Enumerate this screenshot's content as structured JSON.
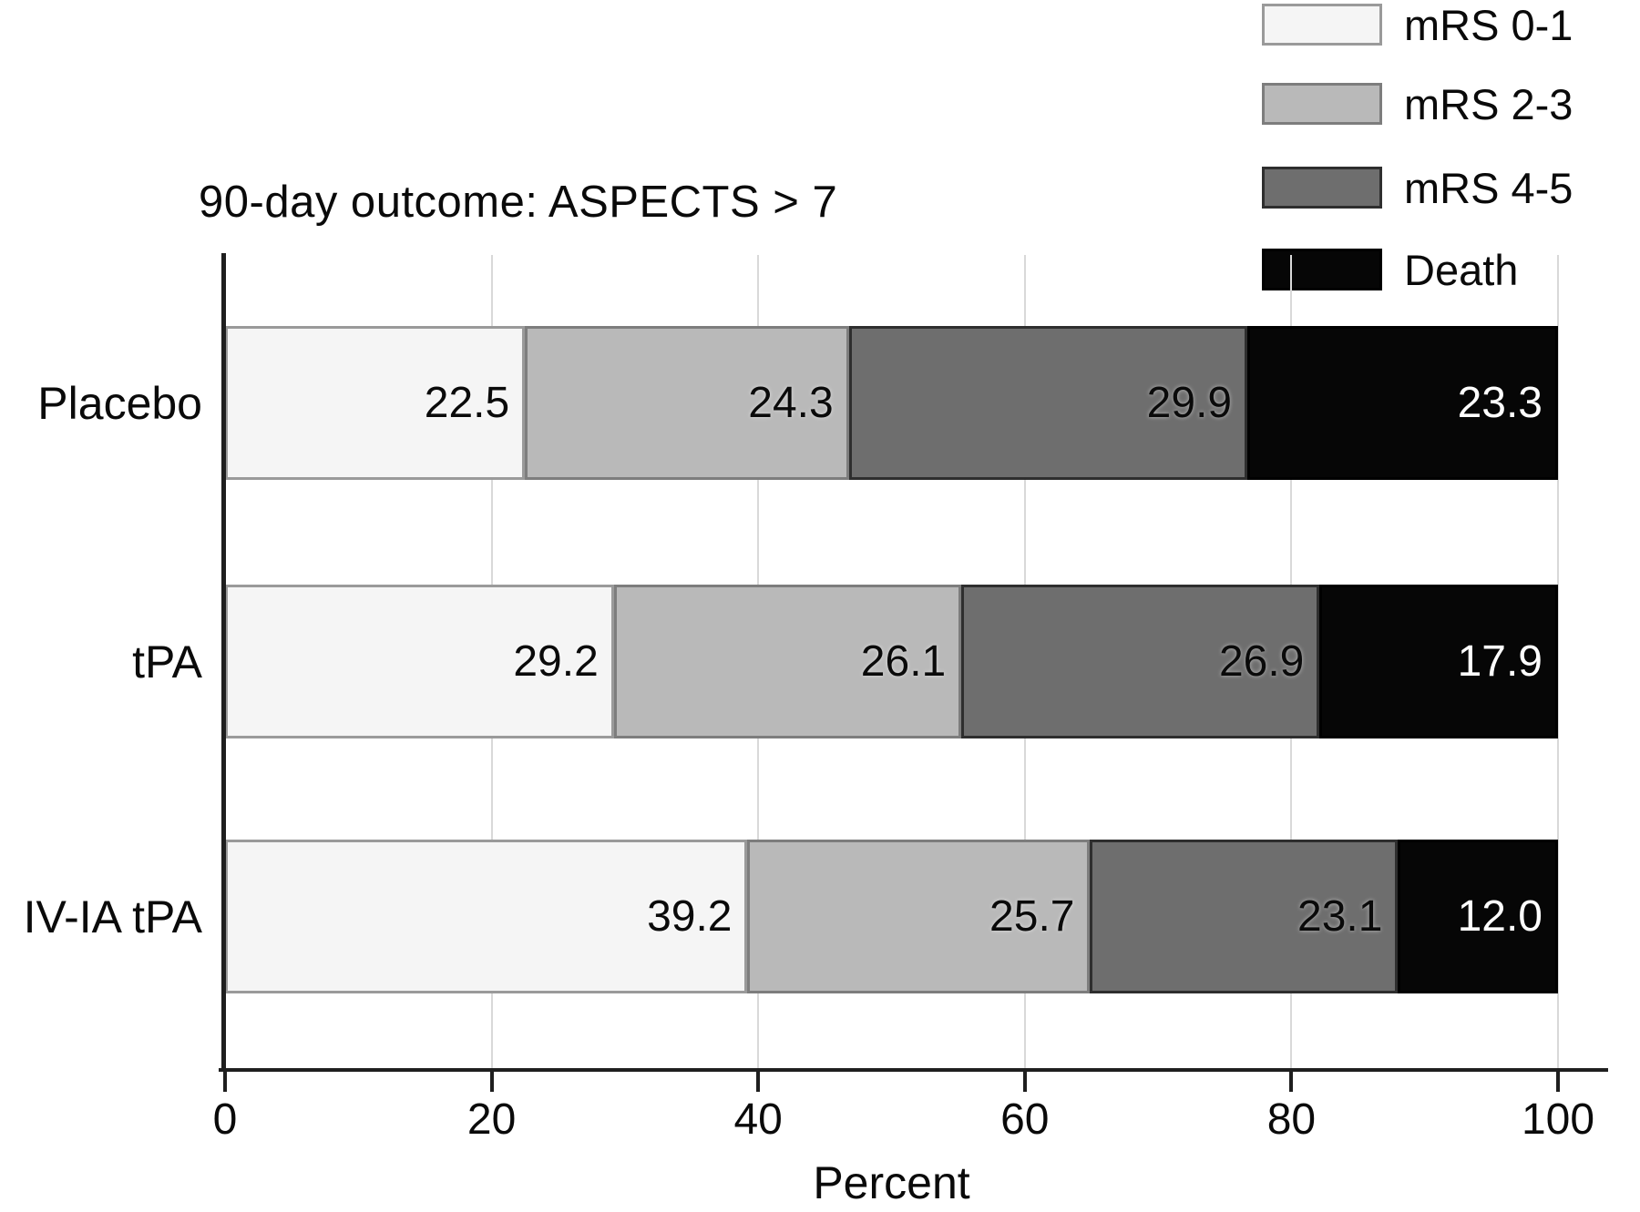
{
  "chart_data": {
    "type": "bar",
    "orientation": "horizontal-stacked",
    "title": "90-day outcome: ASPECTS > 7",
    "xlabel": "Percent",
    "xlim": [
      0,
      100
    ],
    "xticks": [
      "0",
      "20",
      "40",
      "60",
      "80",
      "100"
    ],
    "grid": true,
    "legend_position": "top-right",
    "categories": [
      "Placebo",
      "tPA",
      "IV-IA tPA"
    ],
    "series": [
      {
        "name": "mRS 0-1",
        "values": [
          22.5,
          29.2,
          39.2
        ],
        "value_labels": [
          "22.5",
          "29.2",
          "39.2"
        ],
        "fill": "#f5f5f5",
        "border": "#9a9a9a",
        "text_color": "#0a0a0a"
      },
      {
        "name": "mRS 2-3",
        "values": [
          24.3,
          26.1,
          25.7
        ],
        "value_labels": [
          "24.3",
          "26.1",
          "25.7"
        ],
        "fill": "#b9b9b9",
        "border": "#7d7d7d",
        "text_color": "#0a0a0a"
      },
      {
        "name": "mRS 4-5",
        "values": [
          29.9,
          26.9,
          23.1
        ],
        "value_labels": [
          "29.9",
          "26.9",
          "23.1"
        ],
        "fill": "#6e6e6e",
        "border": "#2e2e2e",
        "text_color": "#0a0a0a"
      },
      {
        "name": "Death",
        "values": [
          23.3,
          17.9,
          12.0
        ],
        "value_labels": [
          "23.3",
          "17.9",
          "12.0"
        ],
        "fill": "#060606",
        "border": "#000000",
        "text_color": "#ffffff"
      }
    ],
    "axis_color": "#1f1f1f",
    "grid_color": "#d9d9d9"
  }
}
